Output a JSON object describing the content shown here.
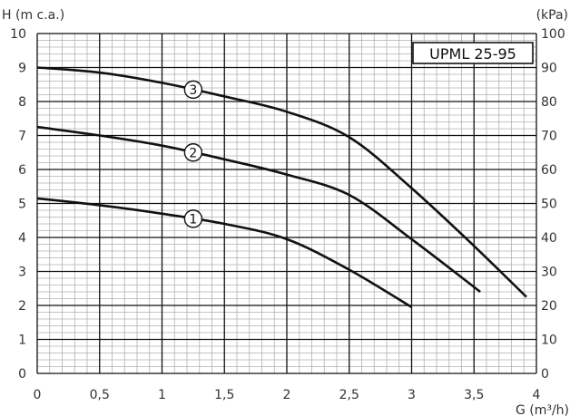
{
  "chart_data": {
    "type": "line",
    "title": "UPML 25-95",
    "y_label_left": "H (m c.a.)",
    "y_label_right": "(kPa)",
    "x_label": "G (m³/h)",
    "xlim": [
      0,
      4
    ],
    "ylim": [
      0,
      10
    ],
    "ylim_right": [
      0,
      100
    ],
    "x_tick_labels": [
      "0",
      "0,5",
      "1",
      "1,5",
      "2",
      "2,5",
      "3",
      "3,5",
      "4"
    ],
    "y_tick_labels": [
      "0",
      "1",
      "2",
      "3",
      "4",
      "5",
      "6",
      "7",
      "8",
      "9",
      "10"
    ],
    "y_right_tick_labels": [
      "0",
      "10",
      "20",
      "30",
      "40",
      "50",
      "60",
      "70",
      "80",
      "90",
      "100"
    ],
    "grid": true,
    "series": [
      {
        "name": "1",
        "x": [
          0,
          0.5,
          1.0,
          1.5,
          2.0,
          2.5,
          3.0
        ],
        "y": [
          5.15,
          4.95,
          4.7,
          4.4,
          3.95,
          3.05,
          1.95
        ]
      },
      {
        "name": "2",
        "x": [
          0,
          0.5,
          1.0,
          1.5,
          2.0,
          2.5,
          3.0,
          3.55
        ],
        "y": [
          7.25,
          7.0,
          6.7,
          6.3,
          5.85,
          5.25,
          3.95,
          2.4
        ]
      },
      {
        "name": "3",
        "x": [
          0,
          0.5,
          1.0,
          1.5,
          2.0,
          2.5,
          3.0,
          3.5,
          3.92
        ],
        "y": [
          9.0,
          8.85,
          8.55,
          8.15,
          7.7,
          6.95,
          5.45,
          3.75,
          2.25
        ]
      }
    ],
    "curve_label_x": [
      1.25,
      1.25,
      1.25
    ],
    "colors": {
      "curve": "#111111",
      "major_grid": "#111111",
      "minor_grid": "#b0b0b0",
      "text": "#333333"
    }
  }
}
